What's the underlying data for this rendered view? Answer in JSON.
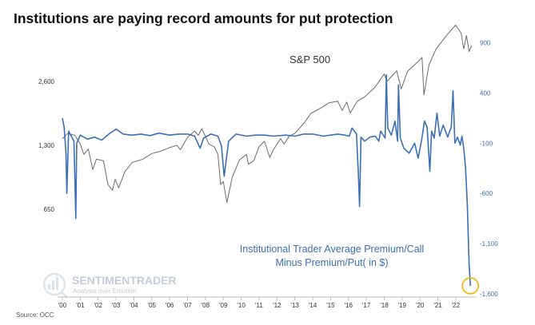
{
  "chart_data": {
    "type": "line",
    "title": "Institutions are paying record amounts for put protection",
    "x_ticks": [
      "'00",
      "'01",
      "'02",
      "'03",
      "'04",
      "'05",
      "'06",
      "'07",
      "'08",
      "'09",
      "'10",
      "'11",
      "'12",
      "'13",
      "'14",
      "'15",
      "'16",
      "'17",
      "'18",
      "'19",
      "'20",
      "'21",
      "'22"
    ],
    "x_range": [
      2000.0,
      2022.9
    ],
    "left_axis": {
      "scale": "log",
      "ticks": [
        650,
        1300,
        2600
      ],
      "tick_labels": [
        "650",
        "1,300",
        "2,600"
      ],
      "range": [
        260,
        5200
      ]
    },
    "right_axis": {
      "ticks": [
        900,
        400,
        -100,
        -600,
        -1100,
        -1600
      ],
      "tick_labels": [
        "900",
        "400",
        "-100",
        "-600",
        "-1,100",
        "-1,600"
      ],
      "range": [
        -1600,
        1150
      ]
    },
    "series": [
      {
        "name": "S&P 500",
        "axis": "left",
        "color": "#6b6b6b",
        "points": [
          [
            2000.0,
            1400
          ],
          [
            2000.3,
            1480
          ],
          [
            2000.7,
            1450
          ],
          [
            2001.0,
            1320
          ],
          [
            2001.2,
            1180
          ],
          [
            2001.45,
            1250
          ],
          [
            2001.7,
            1000
          ],
          [
            2001.9,
            1120
          ],
          [
            2002.3,
            1100
          ],
          [
            2002.55,
            850
          ],
          [
            2002.8,
            800
          ],
          [
            2002.95,
            900
          ],
          [
            2003.15,
            820
          ],
          [
            2003.5,
            980
          ],
          [
            2003.9,
            1080
          ],
          [
            2004.5,
            1120
          ],
          [
            2005.0,
            1190
          ],
          [
            2005.5,
            1220
          ],
          [
            2006.0,
            1270
          ],
          [
            2006.4,
            1300
          ],
          [
            2006.6,
            1240
          ],
          [
            2007.0,
            1420
          ],
          [
            2007.4,
            1520
          ],
          [
            2007.6,
            1450
          ],
          [
            2007.8,
            1560
          ],
          [
            2008.2,
            1320
          ],
          [
            2008.5,
            1280
          ],
          [
            2008.7,
            1180
          ],
          [
            2008.85,
            850
          ],
          [
            2009.0,
            880
          ],
          [
            2009.2,
            700
          ],
          [
            2009.5,
            920
          ],
          [
            2009.9,
            1110
          ],
          [
            2010.3,
            1180
          ],
          [
            2010.4,
            1060
          ],
          [
            2010.7,
            1100
          ],
          [
            2011.0,
            1280
          ],
          [
            2011.3,
            1360
          ],
          [
            2011.6,
            1140
          ],
          [
            2011.8,
            1240
          ],
          [
            2012.2,
            1400
          ],
          [
            2012.4,
            1320
          ],
          [
            2012.7,
            1440
          ],
          [
            2013.0,
            1480
          ],
          [
            2013.5,
            1650
          ],
          [
            2013.9,
            1840
          ],
          [
            2014.5,
            1960
          ],
          [
            2014.9,
            2060
          ],
          [
            2015.4,
            2100
          ],
          [
            2015.65,
            1900
          ],
          [
            2015.9,
            2080
          ],
          [
            2016.1,
            1850
          ],
          [
            2016.5,
            2100
          ],
          [
            2016.9,
            2200
          ],
          [
            2017.5,
            2450
          ],
          [
            2018.0,
            2820
          ],
          [
            2018.15,
            2600
          ],
          [
            2018.7,
            2920
          ],
          [
            2018.95,
            2400
          ],
          [
            2019.3,
            2900
          ],
          [
            2019.9,
            3230
          ],
          [
            2020.12,
            3380
          ],
          [
            2020.22,
            2250
          ],
          [
            2020.5,
            3100
          ],
          [
            2020.9,
            3700
          ],
          [
            2021.5,
            4300
          ],
          [
            2021.99,
            4790
          ],
          [
            2022.3,
            4400
          ],
          [
            2022.45,
            3700
          ],
          [
            2022.6,
            4280
          ],
          [
            2022.75,
            3600
          ],
          [
            2022.9,
            3850
          ]
        ]
      },
      {
        "name": "Institutional Trader Average Premium/Call Minus Premium/Put( in $)",
        "axis": "right",
        "color": "#3b6fb6",
        "points": [
          [
            2000.0,
            150
          ],
          [
            2000.1,
            60
          ],
          [
            2000.2,
            -200
          ],
          [
            2000.25,
            -600
          ],
          [
            2000.35,
            20
          ],
          [
            2000.5,
            -30
          ],
          [
            2000.65,
            -80
          ],
          [
            2000.75,
            -850
          ],
          [
            2000.8,
            -100
          ],
          [
            2001.0,
            -20
          ],
          [
            2001.4,
            -60
          ],
          [
            2001.8,
            -40
          ],
          [
            2002.2,
            -70
          ],
          [
            2002.6,
            -10
          ],
          [
            2003.0,
            40
          ],
          [
            2003.4,
            -10
          ],
          [
            2003.9,
            -20
          ],
          [
            2004.4,
            -10
          ],
          [
            2004.9,
            -25
          ],
          [
            2005.4,
            0
          ],
          [
            2006.0,
            -20
          ],
          [
            2006.5,
            -10
          ],
          [
            2007.0,
            -10
          ],
          [
            2007.4,
            -30
          ],
          [
            2007.7,
            -150
          ],
          [
            2007.9,
            -50
          ],
          [
            2008.3,
            -10
          ],
          [
            2008.7,
            -30
          ],
          [
            2008.9,
            -130
          ],
          [
            2009.05,
            -430
          ],
          [
            2009.3,
            -80
          ],
          [
            2009.7,
            -10
          ],
          [
            2010.3,
            -30
          ],
          [
            2010.8,
            -20
          ],
          [
            2011.3,
            -20
          ],
          [
            2011.8,
            -30
          ],
          [
            2012.5,
            -20
          ],
          [
            2013.0,
            -30
          ],
          [
            2013.5,
            -10
          ],
          [
            2014.0,
            -10
          ],
          [
            2014.6,
            -30
          ],
          [
            2015.0,
            -20
          ],
          [
            2015.4,
            -10
          ],
          [
            2015.8,
            -20
          ],
          [
            2016.05,
            -30
          ],
          [
            2016.2,
            50
          ],
          [
            2016.45,
            -10
          ],
          [
            2016.55,
            -380
          ],
          [
            2016.62,
            -730
          ],
          [
            2016.7,
            -40
          ],
          [
            2016.9,
            -80
          ],
          [
            2017.2,
            -40
          ],
          [
            2017.5,
            -30
          ],
          [
            2017.7,
            -80
          ],
          [
            2017.8,
            20
          ],
          [
            2018.05,
            -50
          ],
          [
            2018.12,
            580
          ],
          [
            2018.2,
            50
          ],
          [
            2018.4,
            -20
          ],
          [
            2018.6,
            120
          ],
          [
            2018.75,
            -80
          ],
          [
            2018.8,
            480
          ],
          [
            2018.9,
            -50
          ],
          [
            2019.1,
            -150
          ],
          [
            2019.4,
            -200
          ],
          [
            2019.7,
            -100
          ],
          [
            2019.9,
            -250
          ],
          [
            2020.1,
            -60
          ],
          [
            2020.25,
            120
          ],
          [
            2020.4,
            60
          ],
          [
            2020.55,
            -380
          ],
          [
            2020.65,
            20
          ],
          [
            2020.8,
            -50
          ],
          [
            2020.95,
            200
          ],
          [
            2021.1,
            -30
          ],
          [
            2021.3,
            80
          ],
          [
            2021.55,
            -40
          ],
          [
            2021.75,
            60
          ],
          [
            2021.85,
            420
          ],
          [
            2021.95,
            -100
          ],
          [
            2022.1,
            -40
          ],
          [
            2022.25,
            -120
          ],
          [
            2022.35,
            -30
          ],
          [
            2022.45,
            -150
          ],
          [
            2022.55,
            -350
          ],
          [
            2022.65,
            -720
          ],
          [
            2022.75,
            -1300
          ],
          [
            2022.82,
            -1520
          ]
        ]
      }
    ],
    "annotations": {
      "sp500_label": "S&P 500",
      "blue_label_line1": "Institutional Trader Average Premium/Call",
      "blue_label_line2": "Minus Premium/Put( in $)",
      "watermark_main": "SENTIMENTRADER",
      "watermark_sub": "Analysis over Emotion",
      "highlight_color": "#f0b400",
      "source": "Source: OCC"
    },
    "grid": false
  }
}
